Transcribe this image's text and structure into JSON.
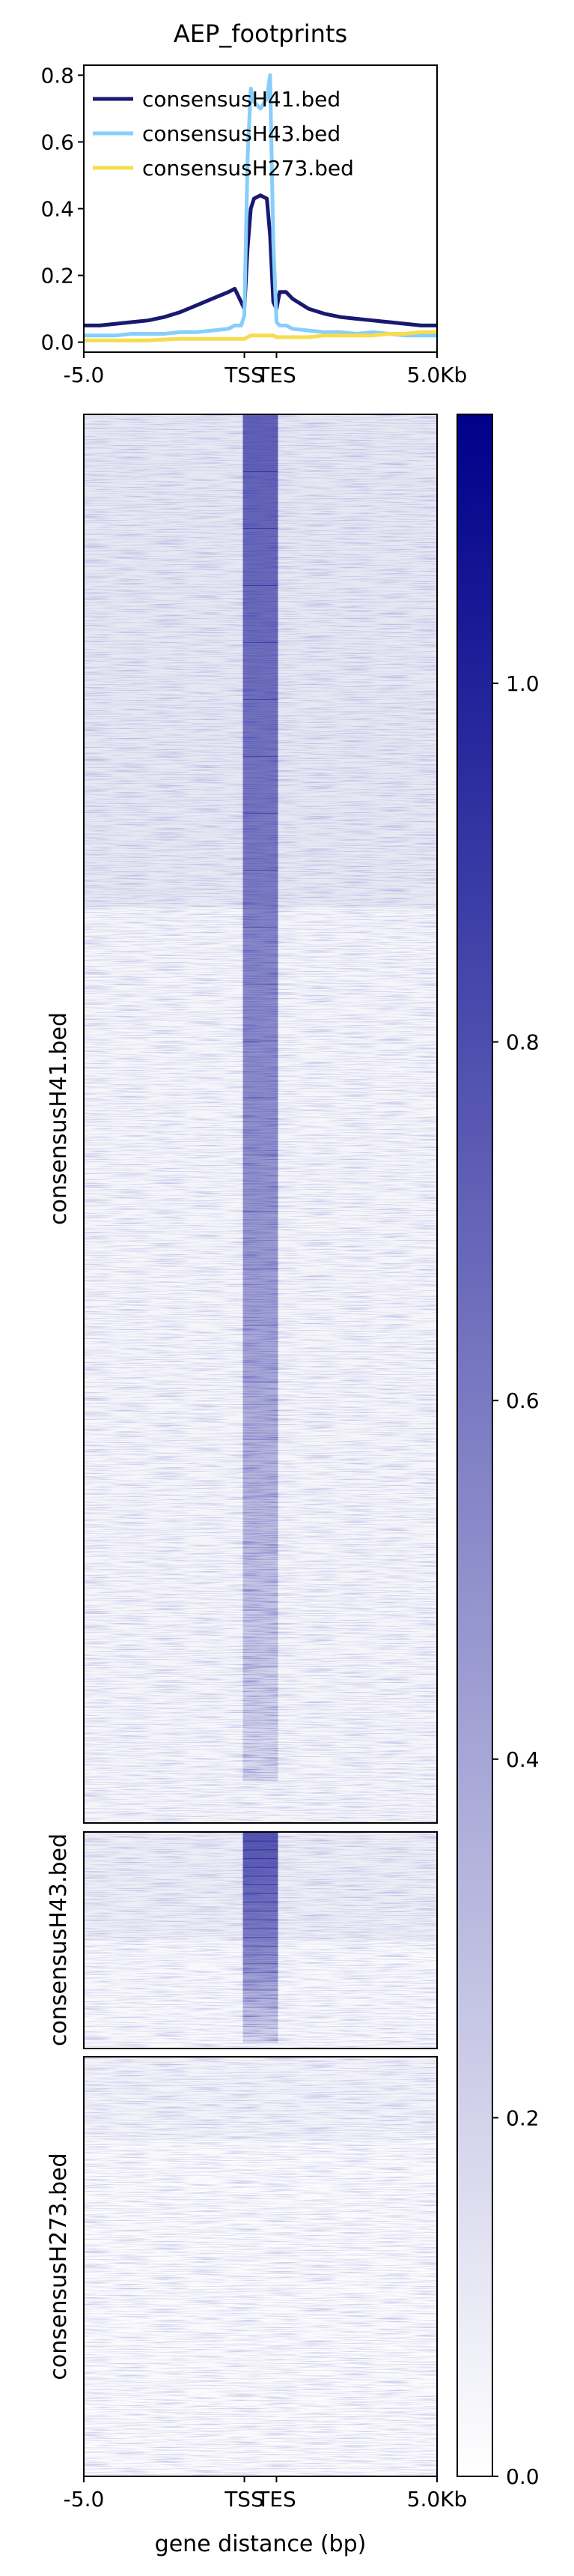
{
  "chart_data": [
    {
      "type": "line",
      "title": "AEP_footprints",
      "x_tick_labels": [
        "-5.0",
        "TSS",
        "TES",
        "5.0Kb"
      ],
      "x_tick_positions_bp": [
        -5000,
        0,
        1000,
        6000
      ],
      "xlim": [
        -5000,
        6000
      ],
      "ylim": [
        -0.03,
        0.83
      ],
      "y_ticks": [
        0.0,
        0.2,
        0.4,
        0.6,
        0.8
      ],
      "y_tick_labels": [
        "0.0",
        "0.2",
        "0.4",
        "0.6",
        "0.8"
      ],
      "legend_position": "top-left",
      "x": [
        -5000,
        -4500,
        -4000,
        -3500,
        -3000,
        -2500,
        -2000,
        -1500,
        -1000,
        -500,
        -300,
        -100,
        0,
        100,
        200,
        300,
        500,
        700,
        800,
        900,
        1000,
        1100,
        1300,
        1500,
        2000,
        2500,
        3000,
        3500,
        4000,
        4500,
        5000,
        5500,
        6000
      ],
      "series": [
        {
          "name": "consensusH41.bed",
          "color": "#191970",
          "values": [
            0.05,
            0.05,
            0.055,
            0.06,
            0.065,
            0.075,
            0.09,
            0.11,
            0.13,
            0.15,
            0.16,
            0.12,
            0.1,
            0.28,
            0.4,
            0.43,
            0.44,
            0.43,
            0.32,
            0.12,
            0.1,
            0.15,
            0.15,
            0.13,
            0.1,
            0.085,
            0.075,
            0.07,
            0.065,
            0.06,
            0.055,
            0.05,
            0.05
          ]
        },
        {
          "name": "consensusH43.bed",
          "color": "#87cefa",
          "values": [
            0.02,
            0.02,
            0.02,
            0.025,
            0.025,
            0.025,
            0.03,
            0.03,
            0.035,
            0.04,
            0.05,
            0.05,
            0.08,
            0.55,
            0.76,
            0.72,
            0.7,
            0.73,
            0.8,
            0.3,
            0.06,
            0.05,
            0.05,
            0.04,
            0.035,
            0.03,
            0.03,
            0.025,
            0.03,
            0.025,
            0.02,
            0.02,
            0.02
          ]
        },
        {
          "name": "consensusH273.bed",
          "color": "#f5dd4e",
          "values": [
            0.005,
            0.005,
            0.005,
            0.005,
            0.005,
            0.008,
            0.01,
            0.01,
            0.01,
            0.01,
            0.01,
            0.01,
            0.01,
            0.015,
            0.02,
            0.02,
            0.02,
            0.02,
            0.02,
            0.02,
            0.015,
            0.015,
            0.015,
            0.015,
            0.015,
            0.02,
            0.02,
            0.02,
            0.02,
            0.025,
            0.025,
            0.03,
            0.03
          ]
        }
      ]
    },
    {
      "type": "heatmap",
      "x_tick_labels": [
        "-5.0",
        "TSS",
        "TES",
        "5.0Kb"
      ],
      "xlabel": "gene distance (bp)",
      "groups": [
        {
          "label": "consensusH41.bed",
          "peak_signal": 0.9,
          "background_signal": 0.08
        },
        {
          "label": "consensusH43.bed",
          "peak_signal": 1.0,
          "background_signal": 0.06
        },
        {
          "label": "consensusH273.bed",
          "peak_signal": 0.03,
          "background_signal": 0.04
        }
      ],
      "colorbar": {
        "range": [
          0.0,
          1.15
        ],
        "ticks": [
          0.0,
          0.2,
          0.4,
          0.6,
          0.8,
          1.0
        ],
        "tick_labels": [
          "0.0",
          "0.2",
          "0.4",
          "0.6",
          "0.8",
          "1.0"
        ],
        "color_low": "#ffffff",
        "color_high": "#00008b"
      }
    }
  ]
}
